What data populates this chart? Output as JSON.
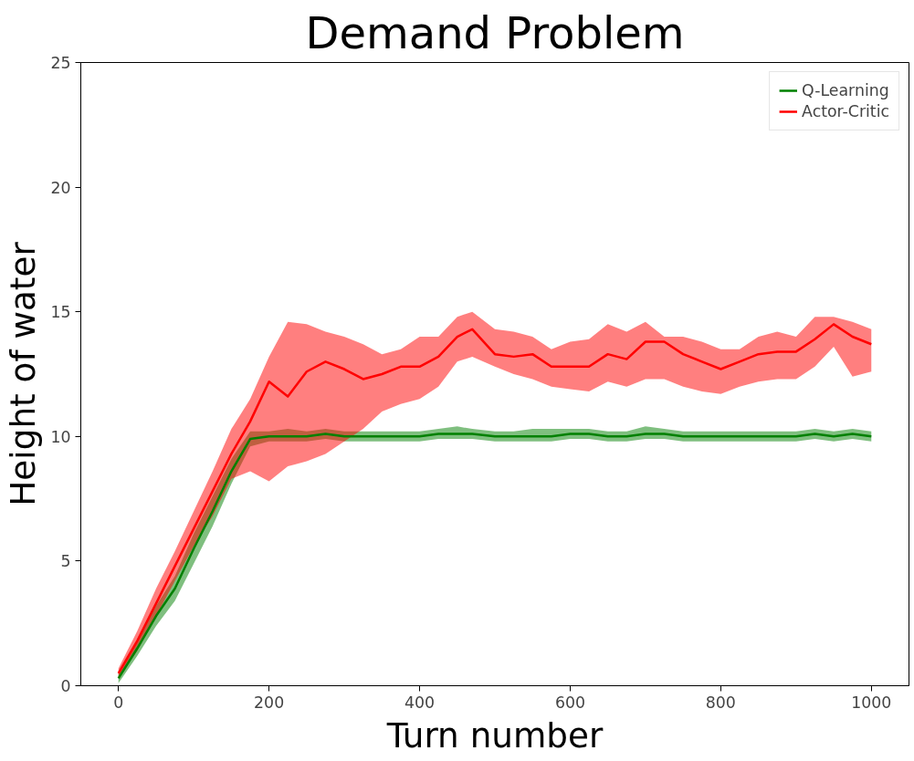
{
  "chart_data": {
    "type": "line",
    "title": "Demand Problem",
    "xlabel": "Turn number",
    "ylabel": "Height of water",
    "x": [
      0,
      25,
      50,
      75,
      100,
      125,
      150,
      175,
      200,
      225,
      250,
      275,
      300,
      325,
      350,
      375,
      400,
      425,
      450,
      470,
      500,
      525,
      550,
      575,
      600,
      625,
      650,
      675,
      700,
      725,
      750,
      775,
      800,
      825,
      850,
      875,
      900,
      925,
      950,
      975,
      1000
    ],
    "series": [
      {
        "name": "Q-Learning",
        "color": "#008000",
        "values": [
          0.3,
          1.5,
          2.8,
          3.9,
          5.5,
          7.0,
          8.6,
          9.9,
          10.0,
          10.0,
          10.0,
          10.1,
          10.0,
          10.0,
          10.0,
          10.0,
          10.0,
          10.1,
          10.1,
          10.1,
          10.0,
          10.0,
          10.0,
          10.0,
          10.1,
          10.1,
          10.0,
          10.0,
          10.1,
          10.1,
          10.0,
          10.0,
          10.0,
          10.0,
          10.0,
          10.0,
          10.0,
          10.1,
          10.0,
          10.1,
          10.0
        ],
        "lower": [
          0.1,
          1.2,
          2.4,
          3.4,
          4.9,
          6.4,
          8.1,
          9.6,
          9.8,
          9.8,
          9.8,
          9.9,
          9.8,
          9.8,
          9.8,
          9.8,
          9.8,
          9.9,
          9.9,
          9.9,
          9.8,
          9.8,
          9.8,
          9.8,
          9.9,
          9.9,
          9.8,
          9.8,
          9.9,
          9.9,
          9.8,
          9.8,
          9.8,
          9.8,
          9.8,
          9.8,
          9.8,
          9.9,
          9.8,
          9.9,
          9.8
        ],
        "upper": [
          0.5,
          1.8,
          3.2,
          4.4,
          6.1,
          7.6,
          9.1,
          10.2,
          10.2,
          10.3,
          10.2,
          10.3,
          10.2,
          10.2,
          10.2,
          10.2,
          10.2,
          10.3,
          10.4,
          10.3,
          10.2,
          10.2,
          10.3,
          10.3,
          10.3,
          10.3,
          10.2,
          10.2,
          10.4,
          10.3,
          10.2,
          10.2,
          10.2,
          10.2,
          10.2,
          10.2,
          10.2,
          10.3,
          10.2,
          10.3,
          10.2
        ]
      },
      {
        "name": "Actor-Critic",
        "color": "#ff0000",
        "values": [
          0.5,
          1.8,
          3.3,
          4.8,
          6.3,
          7.8,
          9.3,
          10.6,
          12.2,
          11.6,
          12.6,
          13.0,
          12.7,
          12.3,
          12.5,
          12.8,
          12.8,
          13.2,
          14.0,
          14.3,
          13.3,
          13.2,
          13.3,
          12.8,
          12.8,
          12.8,
          13.3,
          13.1,
          13.8,
          13.8,
          13.3,
          13.0,
          12.7,
          13.0,
          13.3,
          13.4,
          13.4,
          13.9,
          14.5,
          14.0,
          13.7
        ],
        "lower": [
          0.3,
          1.4,
          2.8,
          4.2,
          5.6,
          6.8,
          8.3,
          8.6,
          8.2,
          8.8,
          9.0,
          9.3,
          9.8,
          10.3,
          11.0,
          11.3,
          11.5,
          12.0,
          13.0,
          13.2,
          12.8,
          12.5,
          12.3,
          12.0,
          11.9,
          11.8,
          12.2,
          12.0,
          12.3,
          12.3,
          12.0,
          11.8,
          11.7,
          12.0,
          12.2,
          12.3,
          12.3,
          12.8,
          13.6,
          12.4,
          12.6
        ],
        "upper": [
          0.7,
          2.2,
          3.9,
          5.4,
          7.0,
          8.6,
          10.3,
          11.5,
          13.2,
          14.6,
          14.5,
          14.2,
          14.0,
          13.7,
          13.3,
          13.5,
          14.0,
          14.0,
          14.8,
          15.0,
          14.3,
          14.2,
          14.0,
          13.5,
          13.8,
          13.9,
          14.5,
          14.2,
          14.6,
          14.0,
          14.0,
          13.8,
          13.5,
          13.5,
          14.0,
          14.2,
          14.0,
          14.8,
          14.8,
          14.6,
          14.3
        ]
      }
    ],
    "xlim": [
      -50,
      1050
    ],
    "ylim": [
      0,
      25
    ],
    "xticks": [
      0,
      200,
      400,
      600,
      800,
      1000
    ],
    "yticks": [
      0,
      5,
      10,
      15,
      20,
      25
    ],
    "legend": "top right",
    "grid": false
  }
}
